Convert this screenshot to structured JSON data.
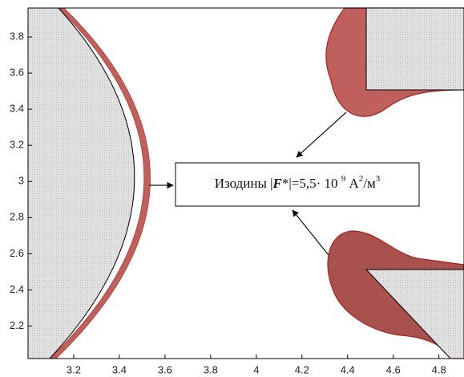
{
  "chart_data": {
    "type": "contour",
    "annotation": [
      "Изодины |",
      "F",
      "*|=5,5· 10 ",
      "9",
      " А",
      "2",
      "/м",
      "3"
    ],
    "xlim": [
      3.0,
      4.91
    ],
    "ylim": [
      2.02,
      3.96
    ],
    "xticks": [
      3.2,
      3.4,
      3.6,
      3.8,
      4,
      4.2,
      4.4,
      4.6,
      4.8
    ],
    "yticks": [
      2.2,
      2.4,
      2.6,
      2.8,
      3,
      3.2,
      3.4,
      3.6,
      3.8
    ]
  }
}
